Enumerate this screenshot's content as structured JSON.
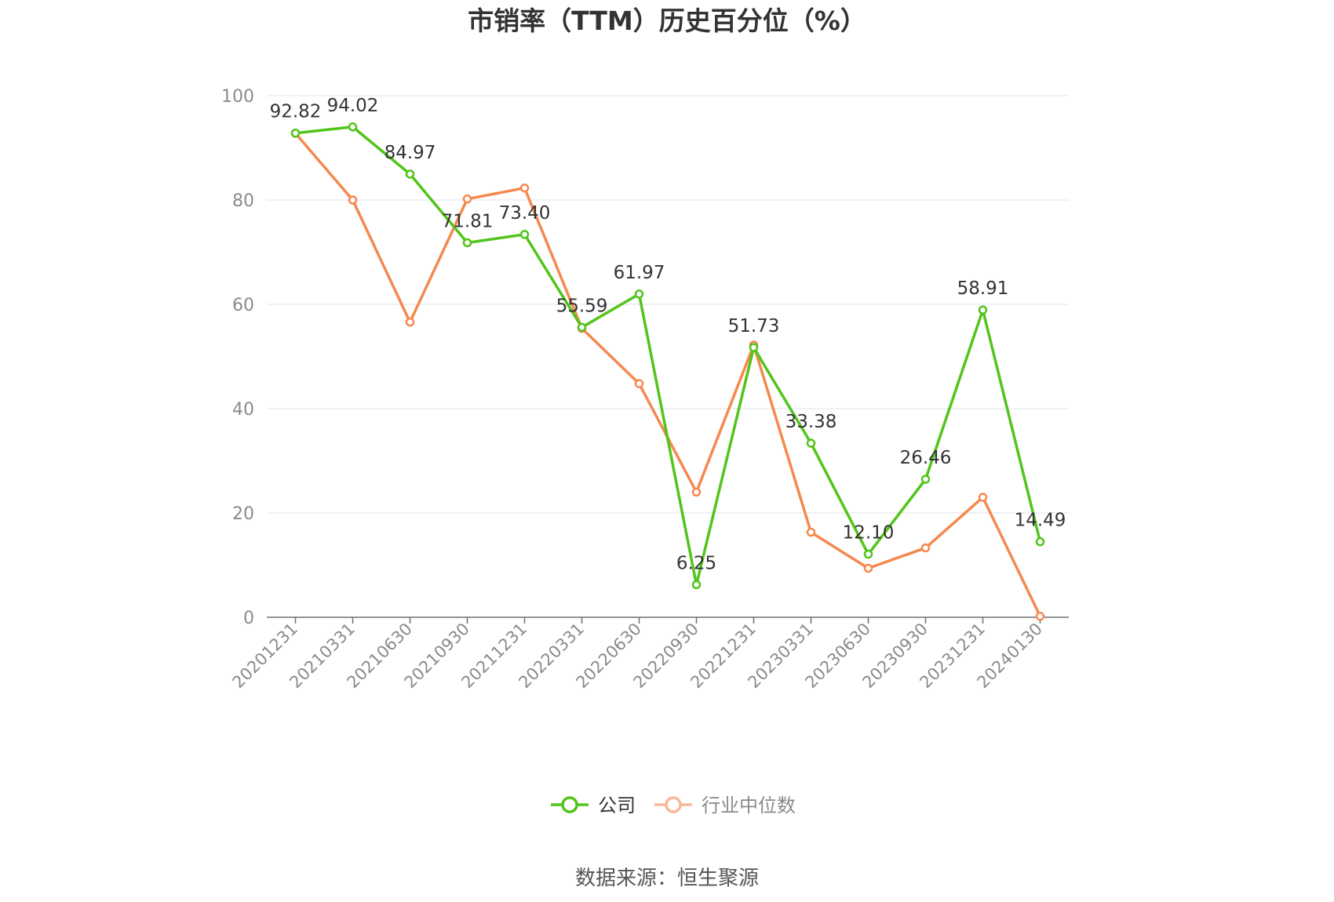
{
  "chart_data": {
    "type": "line",
    "title": "市销率（TTM）历史百分位（%）",
    "categories": [
      "20201231",
      "20210331",
      "20210630",
      "20210930",
      "20211231",
      "20220331",
      "20220630",
      "20220930",
      "20221231",
      "20230331",
      "20230630",
      "20230930",
      "20231231",
      "20240130"
    ],
    "series": [
      {
        "name": "公司",
        "color": "#52c41a",
        "values": [
          92.82,
          94.02,
          84.97,
          71.81,
          73.4,
          55.59,
          61.97,
          6.25,
          51.73,
          33.38,
          12.1,
          26.46,
          58.91,
          14.49
        ],
        "labels": [
          "92.82",
          "94.02",
          "84.97",
          "71.81",
          "73.40",
          "55.59",
          "61.97",
          "6.25",
          "51.73",
          "33.38",
          "12.10",
          "26.46",
          "58.91",
          "14.49"
        ]
      },
      {
        "name": "行业中位数",
        "color": "#f5894f",
        "values": [
          92.8,
          80.0,
          56.6,
          80.2,
          82.3,
          55.4,
          44.8,
          24.0,
          52.2,
          16.3,
          9.4,
          13.3,
          23.0,
          0.2
        ]
      }
    ],
    "yticks": [
      "0",
      "20",
      "40",
      "60",
      "80",
      "100"
    ],
    "ylim": [
      0,
      100
    ],
    "grid": true,
    "legend": "bottom-center"
  },
  "source": "数据来源：恒生聚源"
}
